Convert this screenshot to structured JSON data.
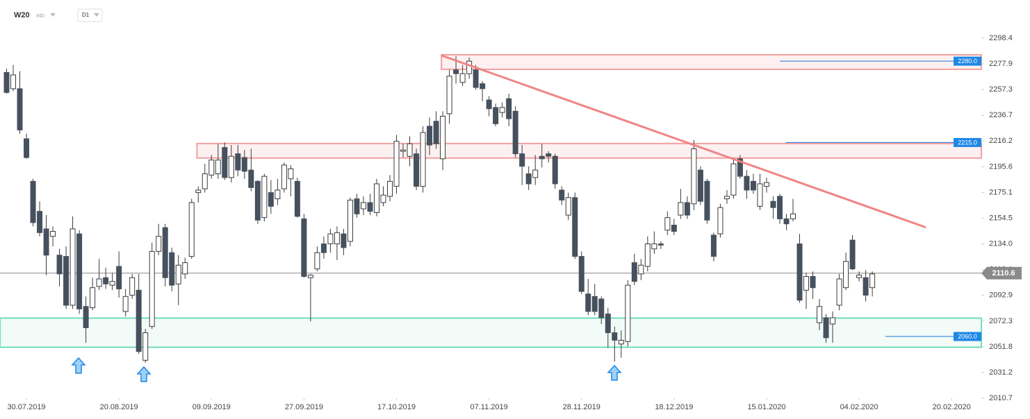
{
  "header": {
    "symbol": "W20",
    "market": "IND",
    "interval": "D1"
  },
  "chart_data": {
    "type": "candlestick",
    "open": [
      2271,
      2258,
      2258,
      2218,
      2184,
      2160,
      2146,
      2140,
      2125,
      2124,
      2085,
      2142,
      2084,
      2083,
      2100,
      2107,
      2101,
      2116,
      2080,
      2093,
      2097,
      2041,
      2068,
      2128,
      2147,
      2127,
      2102,
      2110,
      2124,
      2175,
      2178,
      2189,
      2190,
      2211,
      2187,
      2206,
      2203,
      2193,
      2184,
      2155,
      2175,
      2170,
      2178,
      2186,
      2184,
      2154,
      2107,
      2114,
      2134,
      2134,
      2134,
      2142,
      2136,
      2170,
      2162,
      2167,
      2159,
      2167,
      2172,
      2180,
      2208,
      2204,
      2206,
      2180,
      2228,
      2232,
      2202,
      2238,
      2273,
      2263,
      2270,
      2273,
      2262,
      2249,
      2243,
      2239,
      2250,
      2240,
      2206,
      2190,
      2187,
      2204,
      2206,
      2204,
      2177,
      2157,
      2171,
      2124,
      2094,
      2092,
      2090,
      2078,
      2063,
      2054,
      2056,
      2119,
      2110,
      2116,
      2130,
      2134,
      2145,
      2149,
      2157,
      2167,
      2166,
      2193,
      2184,
      2141,
      2142,
      2170,
      2173,
      2202,
      2188,
      2184,
      2164,
      2180,
      2168,
      2172,
      2154,
      2154,
      2134,
      2097,
      2108,
      2071,
      2075,
      2070,
      2085,
      2099,
      2137,
      2107,
      2107,
      2099
    ],
    "high": [
      2274,
      2277,
      2272,
      2222,
      2186,
      2168,
      2157,
      2148,
      2130,
      2132,
      2156,
      2145,
      2092,
      2107,
      2122,
      2115,
      2111,
      2128,
      2098,
      2110,
      2110,
      2066,
      2135,
      2150,
      2150,
      2131,
      2125,
      2123,
      2170,
      2180,
      2198,
      2205,
      2214,
      2215,
      2213,
      2213,
      2209,
      2210,
      2185,
      2190,
      2185,
      2186,
      2199,
      2197,
      2187,
      2158,
      2110,
      2132,
      2140,
      2146,
      2148,
      2146,
      2171,
      2174,
      2172,
      2174,
      2186,
      2180,
      2189,
      2221,
      2214,
      2220,
      2210,
      2228,
      2235,
      2240,
      2240,
      2273,
      2284,
      2277,
      2283,
      2277,
      2264,
      2252,
      2246,
      2247,
      2254,
      2244,
      2213,
      2196,
      2205,
      2214,
      2208,
      2206,
      2180,
      2175,
      2175,
      2128,
      2106,
      2102,
      2092,
      2083,
      2068,
      2065,
      2105,
      2126,
      2122,
      2140,
      2144,
      2136,
      2160,
      2154,
      2178,
      2172,
      2217,
      2196,
      2186,
      2143,
      2166,
      2177,
      2203,
      2205,
      2193,
      2190,
      2190,
      2187,
      2172,
      2174,
      2158,
      2170,
      2142,
      2111,
      2112,
      2090,
      2078,
      2080,
      2110,
      2127,
      2141,
      2112,
      2113,
      2112
    ],
    "low": [
      2254,
      2256,
      2222,
      2202,
      2148,
      2140,
      2109,
      2132,
      2100,
      2082,
      2082,
      2078,
      2055,
      2081,
      2097,
      2098,
      2097,
      2091,
      2076,
      2090,
      2046,
      2039,
      2066,
      2125,
      2100,
      2096,
      2085,
      2106,
      2122,
      2167,
      2175,
      2186,
      2186,
      2185,
      2183,
      2188,
      2186,
      2176,
      2150,
      2152,
      2158,
      2165,
      2175,
      2172,
      2155,
      2107,
      2072,
      2112,
      2122,
      2127,
      2121,
      2125,
      2132,
      2155,
      2157,
      2157,
      2156,
      2164,
      2168,
      2174,
      2203,
      2196,
      2177,
      2175,
      2205,
      2210,
      2193,
      2230,
      2262,
      2260,
      2266,
      2257,
      2248,
      2236,
      2228,
      2235,
      2228,
      2203,
      2181,
      2177,
      2181,
      2195,
      2199,
      2178,
      2165,
      2153,
      2122,
      2094,
      2077,
      2077,
      2070,
      2051,
      2040,
      2043,
      2052,
      2101,
      2105,
      2112,
      2126,
      2130,
      2141,
      2141,
      2154,
      2154,
      2161,
      2165,
      2150,
      2120,
      2139,
      2166,
      2170,
      2186,
      2170,
      2174,
      2161,
      2175,
      2154,
      2150,
      2145,
      2152,
      2087,
      2082,
      2090,
      2065,
      2055,
      2055,
      2081,
      2097,
      2113,
      2104,
      2088,
      2092
    ],
    "close": [
      2255,
      2269,
      2225,
      2203,
      2151,
      2143,
      2125,
      2144,
      2110,
      2085,
      2146,
      2082,
      2067,
      2099,
      2106,
      2102,
      2104,
      2098,
      2092,
      2107,
      2048,
      2063,
      2128,
      2140,
      2107,
      2101,
      2117,
      2119,
      2167,
      2177,
      2190,
      2201,
      2201,
      2187,
      2204,
      2193,
      2192,
      2179,
      2153,
      2188,
      2164,
      2177,
      2197,
      2194,
      2156,
      2108,
      2109,
      2127,
      2127,
      2142,
      2143,
      2131,
      2169,
      2158,
      2167,
      2160,
      2182,
      2173,
      2184,
      2216,
      2209,
      2214,
      2180,
      2223,
      2213,
      2214,
      2236,
      2268,
      2270,
      2270,
      2280,
      2259,
      2258,
      2242,
      2230,
      2243,
      2234,
      2206,
      2196,
      2182,
      2193,
      2202,
      2204,
      2182,
      2169,
      2171,
      2124,
      2096,
      2080,
      2080,
      2075,
      2063,
      2057,
      2057,
      2101,
      2104,
      2117,
      2134,
      2134,
      2133,
      2155,
      2144,
      2167,
      2157,
      2210,
      2168,
      2153,
      2124,
      2163,
      2172,
      2198,
      2188,
      2177,
      2177,
      2182,
      2183,
      2163,
      2154,
      2150,
      2158,
      2089,
      2108,
      2099,
      2084,
      2059,
      2075,
      2106,
      2120,
      2114,
      2109,
      2093,
      2110
    ],
    "up_color": "#ffffff",
    "down_color": "#46515e",
    "wick_color": "#3a3a3a",
    "xlim": [
      -1,
      147.5
    ],
    "xticks": [
      {
        "value": 3,
        "label": "30.07.2019"
      },
      {
        "value": 17,
        "label": "20.08.2019"
      },
      {
        "value": 31,
        "label": "09.09.2019"
      },
      {
        "value": 45,
        "label": "27.09.2019"
      },
      {
        "value": 59,
        "label": "17.10.2019"
      },
      {
        "value": 73,
        "label": "07.11.2019"
      },
      {
        "value": 87,
        "label": "28.11.2019"
      },
      {
        "value": 101,
        "label": "18.12.2019"
      },
      {
        "value": 115,
        "label": "15.01.2020"
      },
      {
        "value": 129,
        "label": "04.02.2020"
      },
      {
        "value": 143,
        "label": "20.02.2020"
      }
    ],
    "ylim": [
      2010.7,
      2306.7
    ],
    "yticks": [
      2010.7,
      2031.2,
      2051.8,
      2072.3,
      2092.9,
      2113.4,
      {
        "value": 2134,
        "label": "2134.0"
      },
      2154.5,
      2175.1,
      2195.6,
      2216.2,
      2236.7,
      2257.3,
      2277.9,
      2298.4
    ],
    "zones": [
      {
        "high": 2285.1,
        "low": 2273.5,
        "start": 65.8,
        "color": "#f2a0a0",
        "fill": "#fdf0f0"
      },
      {
        "high": 2214.2,
        "low": 2202.6,
        "start": 28.8,
        "color": "#f2a0a0",
        "fill": "#fdf0f0"
      },
      {
        "high": 2074.7,
        "low": 2051.4,
        "start": -1,
        "color": "#6fdcbc",
        "fill": "#f2fbf8"
      }
    ],
    "trendline": {
      "x": [
        65.8,
        139.1
      ],
      "y": [
        2284.6,
        2147.2
      ],
      "color": "#f08484"
    },
    "levels": [
      {
        "value": 2280,
        "label": "2280.0",
        "start": 117
      },
      {
        "value": 2215,
        "label": "2215.0",
        "start": 117.9
      },
      {
        "value": 2060,
        "label": "2060.0",
        "start": 133
      }
    ],
    "level_color": "#1a78d8",
    "last_price": 2110.6
  }
}
